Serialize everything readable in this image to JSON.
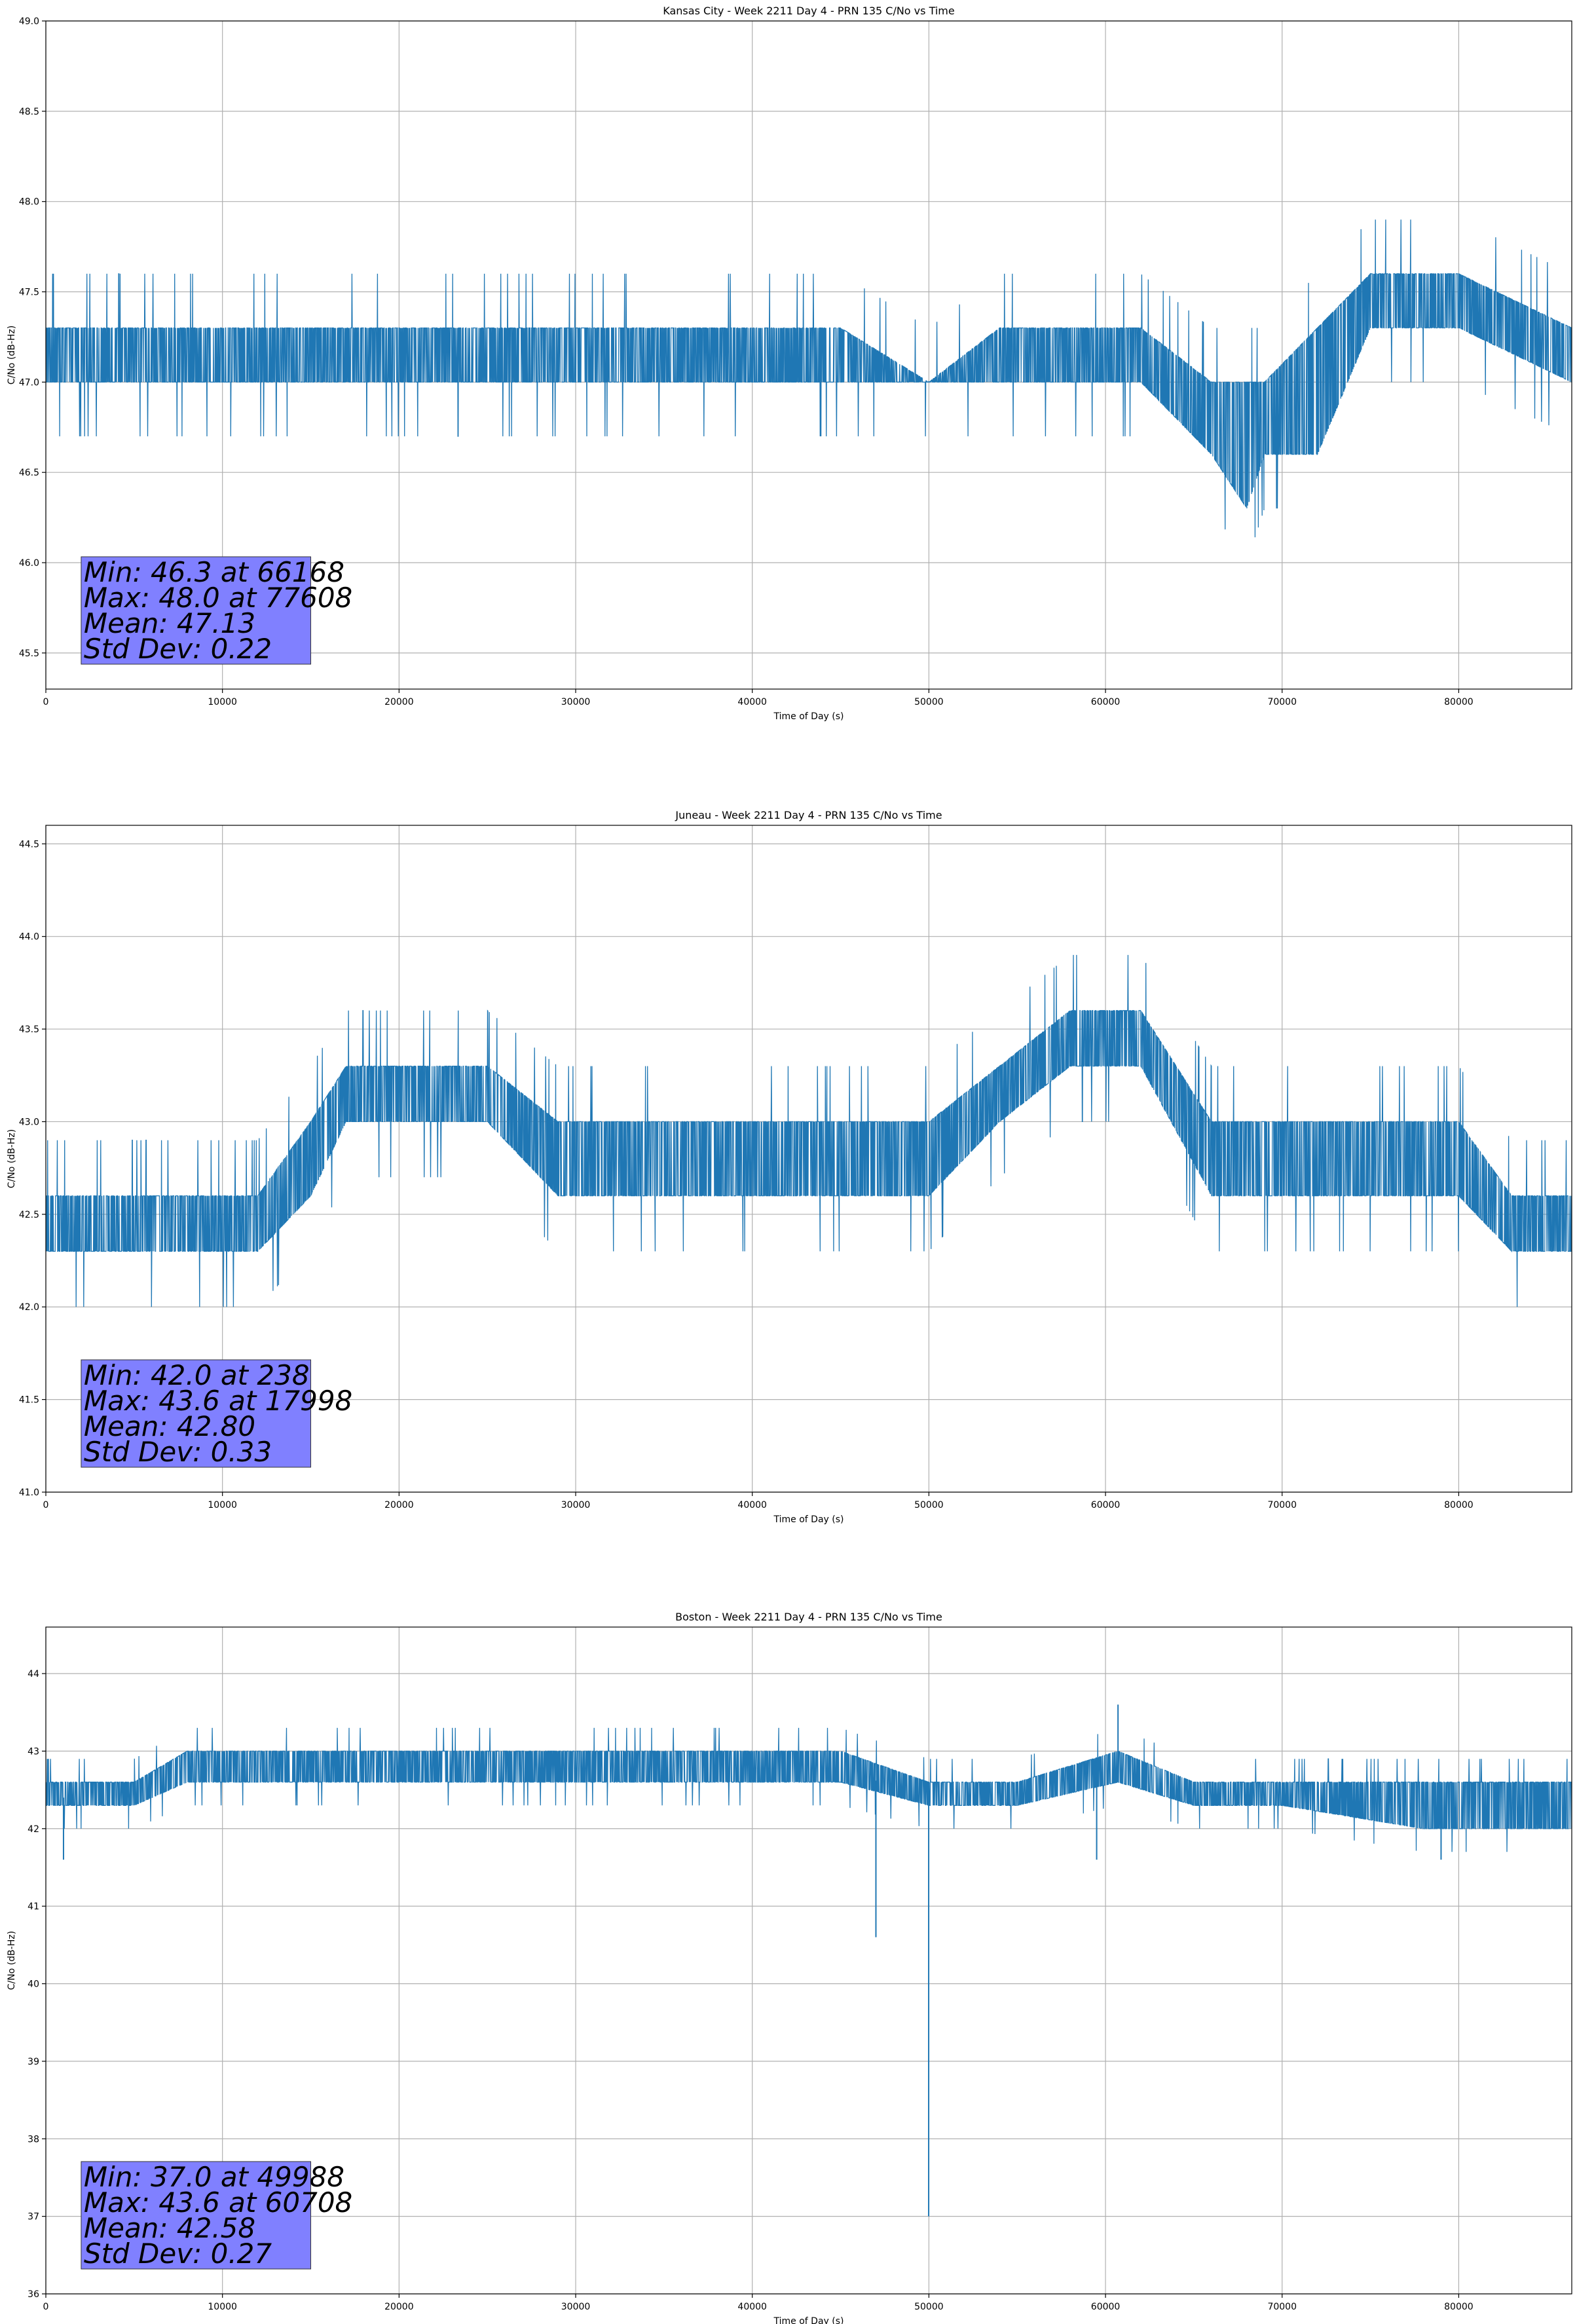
{
  "chart_data": [
    {
      "type": "line",
      "title": "Kansas City - Week 2211 Day 4 - PRN 135 C/No vs Time",
      "xlabel": "Time of Day (s)",
      "ylabel": "C/No (dB-Hz)",
      "xlim": [
        0,
        86400
      ],
      "ylim": [
        45.3,
        49.0
      ],
      "xticks": [
        0,
        10000,
        20000,
        30000,
        40000,
        50000,
        60000,
        70000,
        80000
      ],
      "xtick_labels": [
        "0",
        "10000",
        "20000",
        "30000",
        "40000",
        "50000",
        "60000",
        "70000",
        "80000"
      ],
      "yticks": [
        45.5,
        46.0,
        46.5,
        47.0,
        47.5,
        48.0,
        48.5,
        49.0
      ],
      "ytick_labels": [
        "45.5",
        "46.0",
        "46.5",
        "47.0",
        "47.5",
        "48.0",
        "48.5",
        "49.0"
      ],
      "grid": true,
      "color": "#1f77b4",
      "series": [
        {
          "x": [
            0,
            3000,
            7000,
            10000,
            15000,
            20000,
            25000,
            30000,
            35000,
            40000,
            45000,
            50000,
            54000,
            58000,
            62000,
            66000,
            68000,
            69000,
            72000,
            75000,
            77608,
            80000,
            86400
          ],
          "y": [
            47.15,
            47.15,
            47.15,
            47.15,
            47.15,
            47.15,
            47.15,
            47.15,
            47.15,
            47.15,
            47.15,
            47.0,
            47.15,
            47.15,
            47.15,
            46.6,
            46.5,
            46.75,
            47.0,
            47.4,
            47.45,
            47.45,
            47.3
          ],
          "band_low": [
            47.0,
            47.0,
            47.0,
            47.0,
            47.0,
            47.0,
            47.0,
            47.0,
            47.0,
            47.0,
            47.0,
            47.0,
            47.0,
            47.0,
            47.0,
            46.6,
            46.3,
            46.6,
            46.6,
            47.3,
            47.3,
            47.3,
            47.0
          ],
          "band_high": [
            47.3,
            47.3,
            47.3,
            47.3,
            47.3,
            47.3,
            47.3,
            47.3,
            47.3,
            47.3,
            47.3,
            47.0,
            47.3,
            47.3,
            47.3,
            47.0,
            47.0,
            47.0,
            47.3,
            47.6,
            47.6,
            47.6,
            47.3
          ]
        }
      ],
      "stats": [
        "Min: 46.3 at 66168",
        "Max: 48.0 at 77608",
        "Mean: 47.13",
        "Std Dev: 0.22"
      ]
    },
    {
      "type": "line",
      "title": "Juneau - Week 2211 Day 4 - PRN 135 C/No vs Time",
      "xlabel": "Time of Day (s)",
      "ylabel": "C/No (dB-Hz)",
      "xlim": [
        0,
        86400
      ],
      "ylim": [
        41.0,
        44.6
      ],
      "xticks": [
        0,
        10000,
        20000,
        30000,
        40000,
        50000,
        60000,
        70000,
        80000
      ],
      "xtick_labels": [
        "0",
        "10000",
        "20000",
        "30000",
        "40000",
        "50000",
        "60000",
        "70000",
        "80000"
      ],
      "yticks": [
        41.0,
        41.5,
        42.0,
        42.5,
        43.0,
        43.5,
        44.0,
        44.5
      ],
      "ytick_labels": [
        "41.0",
        "41.5",
        "42.0",
        "42.5",
        "43.0",
        "43.5",
        "44.0",
        "44.5"
      ],
      "grid": true,
      "color": "#1f77b4",
      "series": [
        {
          "x": [
            0,
            5000,
            9000,
            12000,
            15000,
            17000,
            20000,
            25000,
            29000,
            33000,
            40000,
            45000,
            50000,
            54000,
            58000,
            62000,
            66000,
            70000,
            75000,
            80000,
            83000,
            86400
          ],
          "y": [
            42.45,
            42.45,
            42.45,
            42.6,
            42.8,
            43.15,
            43.15,
            43.15,
            42.8,
            42.8,
            42.8,
            42.8,
            42.8,
            43.15,
            43.45,
            43.45,
            42.8,
            42.8,
            42.8,
            42.8,
            42.45,
            42.45
          ],
          "band_low": [
            42.3,
            42.3,
            42.3,
            42.3,
            42.6,
            43.0,
            43.0,
            43.0,
            42.6,
            42.6,
            42.6,
            42.6,
            42.6,
            43.0,
            43.3,
            43.3,
            42.6,
            42.6,
            42.6,
            42.6,
            42.3,
            42.3
          ],
          "band_high": [
            42.6,
            42.6,
            42.6,
            42.6,
            43.0,
            43.3,
            43.3,
            43.3,
            43.0,
            43.0,
            43.0,
            43.0,
            43.0,
            43.3,
            43.6,
            43.6,
            43.0,
            43.0,
            43.0,
            43.0,
            42.6,
            42.6
          ]
        }
      ],
      "stats": [
        "Min: 42.0 at 238",
        "Max: 43.6 at 17998",
        "Mean: 42.80",
        "Std Dev: 0.33"
      ]
    },
    {
      "type": "line",
      "title": "Boston - Week 2211 Day 4 - PRN 135 C/No vs Time",
      "xlabel": "Time of Day (s)",
      "ylabel": "C/No (dB-Hz)",
      "xlim": [
        0,
        86400
      ],
      "ylim": [
        36.0,
        44.6
      ],
      "xticks": [
        0,
        10000,
        20000,
        30000,
        40000,
        50000,
        60000,
        70000,
        80000
      ],
      "xtick_labels": [
        "0",
        "10000",
        "20000",
        "30000",
        "40000",
        "50000",
        "60000",
        "70000",
        "80000"
      ],
      "yticks": [
        36,
        37,
        38,
        39,
        40,
        41,
        42,
        43,
        44
      ],
      "ytick_labels": [
        "36",
        "37",
        "38",
        "39",
        "40",
        "41",
        "42",
        "43",
        "44"
      ],
      "grid": true,
      "color": "#1f77b4",
      "series": [
        {
          "x": [
            0,
            5000,
            8000,
            15000,
            25000,
            30000,
            40000,
            45000,
            49988,
            55000,
            60708,
            65000,
            70000,
            78000,
            86400
          ],
          "y": [
            42.4,
            42.4,
            42.8,
            42.8,
            42.8,
            42.7,
            42.7,
            42.7,
            42.5,
            42.5,
            42.7,
            42.5,
            42.5,
            42.3,
            42.3
          ],
          "band_low": [
            42.3,
            42.3,
            42.6,
            42.6,
            42.6,
            42.6,
            42.6,
            42.6,
            42.3,
            42.3,
            42.6,
            42.3,
            42.3,
            42.0,
            42.0
          ],
          "band_high": [
            42.6,
            42.6,
            43.0,
            43.0,
            43.0,
            43.0,
            43.0,
            43.0,
            42.6,
            42.6,
            43.0,
            42.6,
            42.6,
            42.6,
            42.6
          ]
        }
      ],
      "spikes": [
        [
          47000,
          40.6
        ],
        [
          49988,
          37.0
        ],
        [
          60708,
          43.6
        ],
        [
          1000,
          41.6
        ],
        [
          59500,
          41.6
        ],
        [
          79000,
          41.6
        ]
      ],
      "stats": [
        "Min: 37.0 at 49988",
        "Max: 43.6 at 60708",
        "Mean: 42.58",
        "Std Dev: 0.27"
      ]
    }
  ]
}
